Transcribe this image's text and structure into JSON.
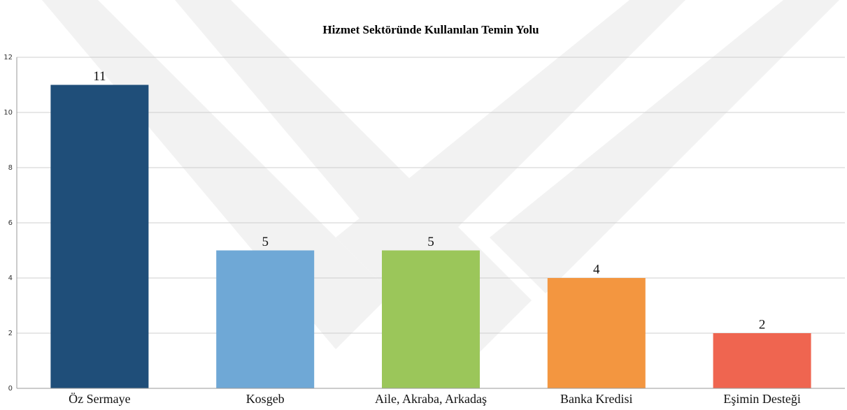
{
  "chart_data": {
    "type": "bar",
    "title": "Hizmet Sektöründe Kullanılan Temin Yolu",
    "categories": [
      "Öz Sermaye",
      "Kosgeb",
      "Aile, Akraba, Arkadaş",
      "Banka Kredisi",
      "Eşimin Desteği"
    ],
    "values": [
      11,
      5,
      5,
      4,
      2
    ],
    "colors": [
      "#1f4e79",
      "#6fa8d6",
      "#9bc65a",
      "#f39640",
      "#ef6550"
    ],
    "ylim": [
      0,
      12
    ],
    "yticks": [
      0,
      2,
      4,
      6,
      8,
      10,
      12
    ],
    "grid": true
  }
}
